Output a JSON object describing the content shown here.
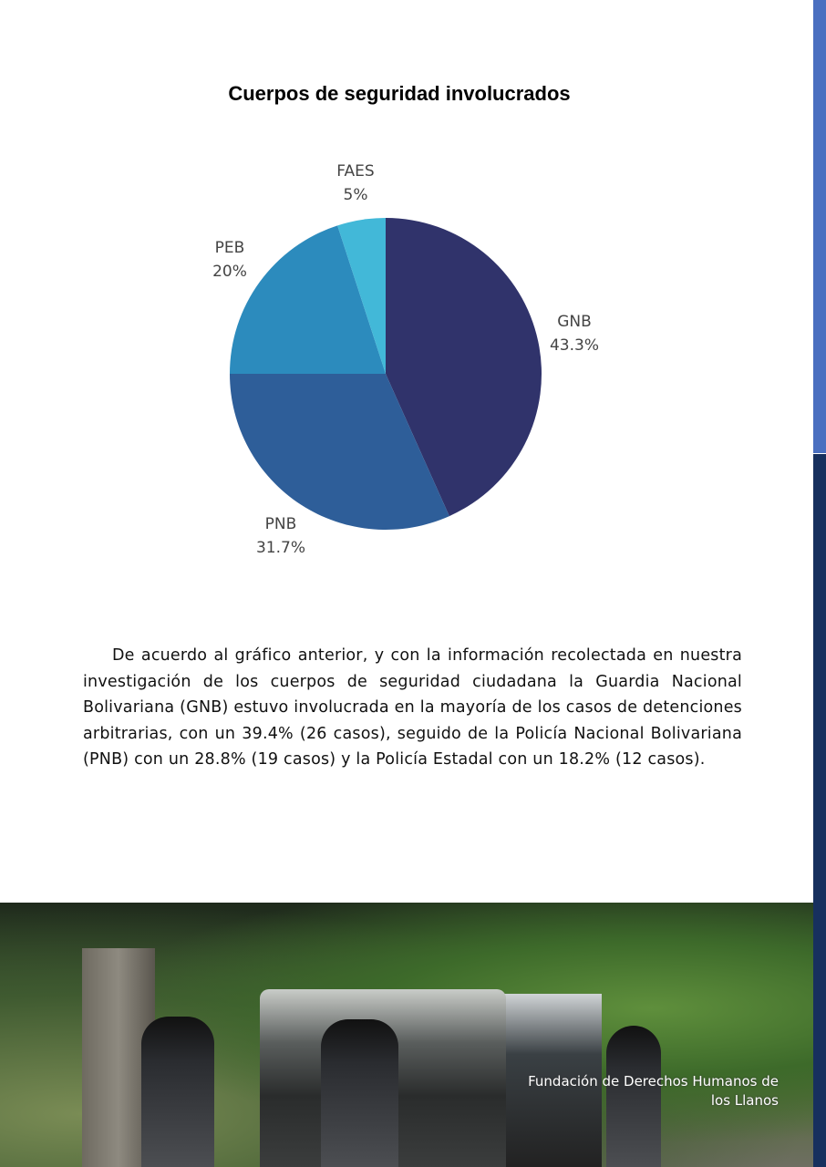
{
  "chart_data": {
    "type": "pie",
    "title": "Cuerpos de seguridad involucrados",
    "slices": [
      {
        "label": "GNB",
        "value": 43.3,
        "value_label": "43.3%",
        "color": "#30336b"
      },
      {
        "label": "PNB",
        "value": 31.7,
        "value_label": "31.7%",
        "color": "#2e5e99"
      },
      {
        "label": "PEB",
        "value": 20,
        "value_label": "20%",
        "color": "#2c8bbd"
      },
      {
        "label": "FAES",
        "value": 5,
        "value_label": "5%",
        "color": "#42b8d8"
      }
    ],
    "start": "top",
    "direction": "clockwise"
  },
  "body": {
    "paragraph": "De acuerdo al gráfico anterior, y con la información recolectada en nuestra investigación de los cuerpos de seguridad ciudadana  la Guardia Nacional Bolivariana (GNB) estuvo involucrada en la mayoría de los casos de detenciones arbitrarias, con un 39.4% (26 casos), seguido de la Policía Nacional Bolivariana (PNB) con un 28.8% (19 casos) y la Policía Estadal con un 18.2% (12 casos)."
  },
  "photo": {
    "caption_line1": "Fundación de Derechos Humanos de",
    "caption_line2": "los Llanos"
  },
  "colors": {
    "side_bar_top": "#4a6fc0",
    "side_bar_bottom": "#17305e"
  }
}
